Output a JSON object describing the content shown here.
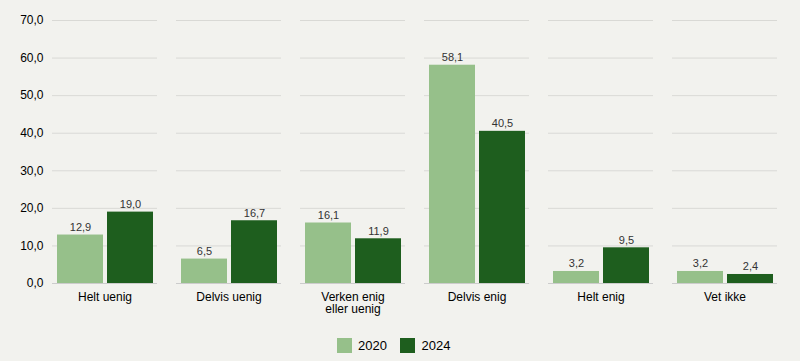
{
  "chart_data": {
    "type": "bar",
    "categories": [
      "Helt uenig",
      "Delvis uenig",
      "Verken enig\neller uenig",
      "Delvis enig",
      "Helt enig",
      "Vet ikke"
    ],
    "series": [
      {
        "name": "2020",
        "color": "#96C08A",
        "values": [
          12.9,
          6.5,
          16.1,
          58.1,
          3.2,
          3.2
        ],
        "value_labels": [
          "12,9",
          "6,5",
          "16,1",
          "58,1",
          "3,2",
          "3,2"
        ]
      },
      {
        "name": "2024",
        "color": "#1E5E1E",
        "values": [
          19.0,
          16.7,
          11.9,
          40.5,
          9.5,
          2.4
        ],
        "value_labels": [
          "19,0",
          "16,7",
          "11,9",
          "40,5",
          "9,5",
          "2,4"
        ]
      }
    ],
    "ylim": [
      0,
      70
    ],
    "yticks": [
      {
        "value": 0,
        "label": "0,0"
      },
      {
        "value": 10,
        "label": "10,0"
      },
      {
        "value": 20,
        "label": "20,0"
      },
      {
        "value": 30,
        "label": "30,0"
      },
      {
        "value": 40,
        "label": "40,0"
      },
      {
        "value": 50,
        "label": "50,0"
      },
      {
        "value": 60,
        "label": "60,0"
      },
      {
        "value": 70,
        "label": "70,0"
      }
    ],
    "grid": true,
    "legend": "bottom",
    "data_labels": true
  }
}
